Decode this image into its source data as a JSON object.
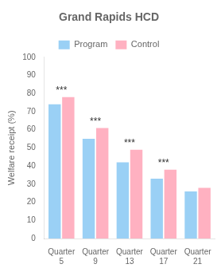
{
  "chart_data": {
    "type": "bar",
    "title": "Grand Rapids HCD",
    "y_label": "Welfare receipt (%)",
    "categories": [
      "Quarter\n5",
      "Quarter\n9",
      "Quarter\n13",
      "Quarter\n17",
      "Quarter\n21"
    ],
    "series": [
      {
        "name": "Program",
        "values": [
          74,
          55,
          42,
          33,
          26
        ]
      },
      {
        "name": "Control",
        "values": [
          78,
          61,
          49,
          38,
          28
        ]
      }
    ],
    "annotations": [
      {
        "category": "Quarter\n5",
        "text": "***"
      },
      {
        "category": "Quarter\n9",
        "text": "***"
      },
      {
        "category": "Quarter\n13",
        "text": "***"
      },
      {
        "category": "Quarter\n17",
        "text": "***"
      }
    ],
    "ylim": [
      0,
      100
    ],
    "yticks": [
      0,
      10,
      20,
      30,
      40,
      50,
      60,
      70,
      80,
      90,
      100
    ],
    "grid": false,
    "legend": "top"
  }
}
